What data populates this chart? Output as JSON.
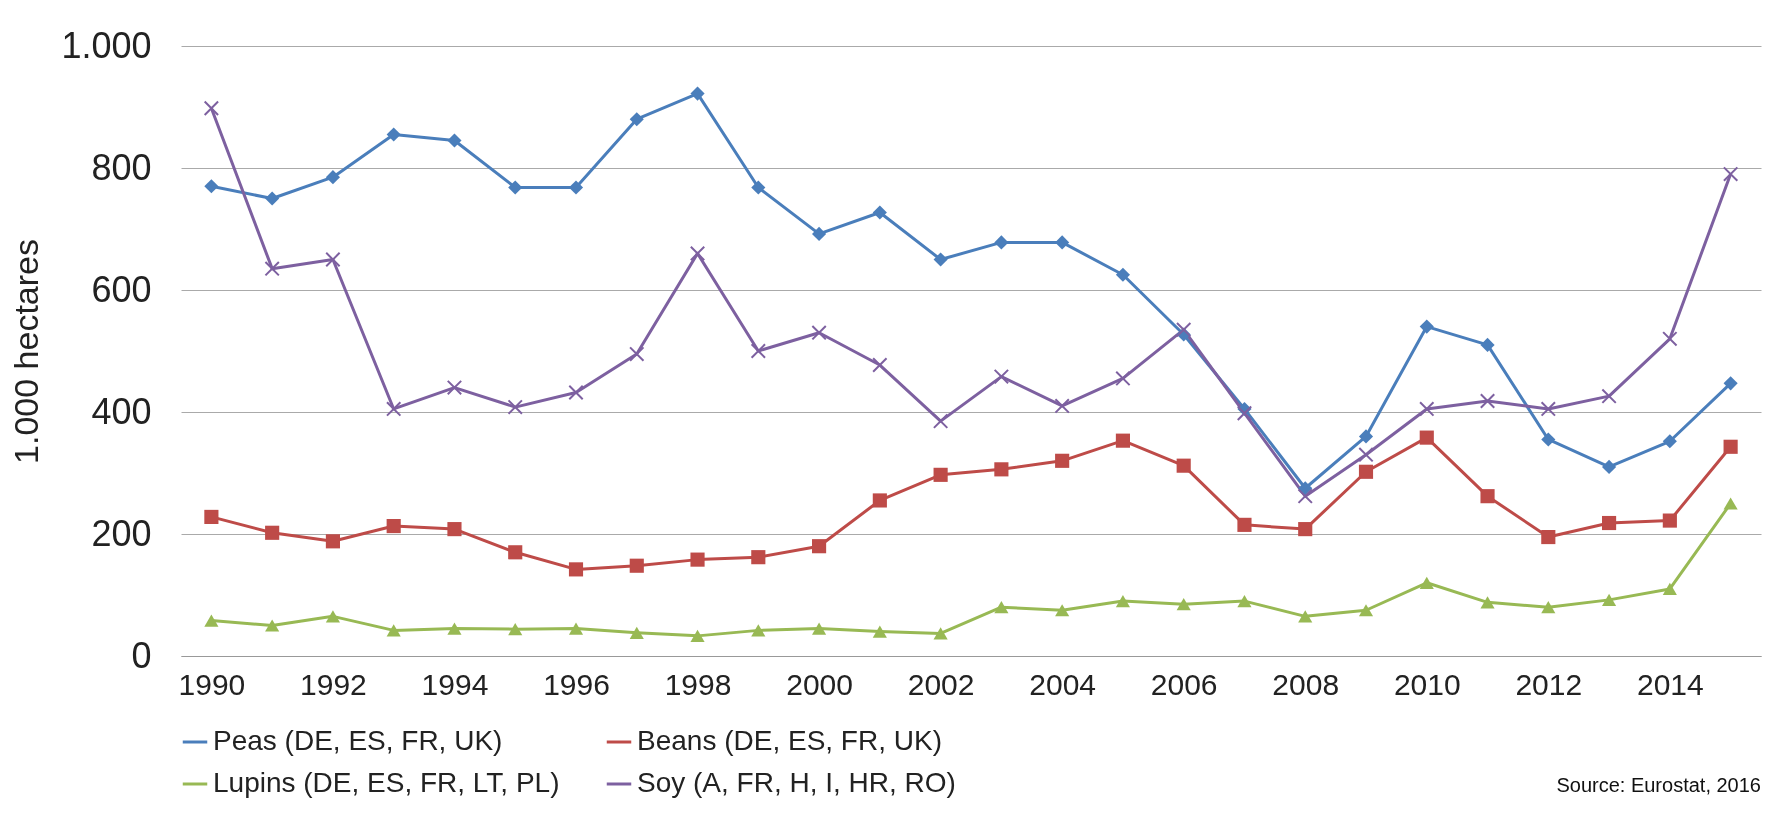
{
  "chart_data": {
    "type": "line",
    "ylabel": "1.000 hectares",
    "x": [
      1990,
      1991,
      1992,
      1993,
      1994,
      1995,
      1996,
      1997,
      1998,
      1999,
      2000,
      2001,
      2002,
      2003,
      2004,
      2005,
      2006,
      2007,
      2008,
      2009,
      2010,
      2011,
      2012,
      2013,
      2014,
      2015
    ],
    "xlim": [
      1989.5,
      2015.5
    ],
    "xticks": [
      1990,
      1992,
      1994,
      1996,
      1998,
      2000,
      2002,
      2004,
      2006,
      2008,
      2010,
      2012,
      2014
    ],
    "ylim": [
      0,
      1000
    ],
    "yticks": [
      0,
      200,
      400,
      600,
      800,
      {
        "value": 1000,
        "label": "1.000"
      }
    ],
    "grid": "y",
    "legend": "bottom",
    "annotations": [
      "Source: Eurostat, 2016"
    ],
    "series": [
      {
        "name": "Peas (DE, ES, FR, UK)",
        "color": "#4a7ebb",
        "marker": "diamond",
        "values": [
          770,
          750,
          785,
          855,
          845,
          768,
          768,
          880,
          922,
          768,
          692,
          727,
          650,
          678,
          678,
          625,
          527,
          405,
          275,
          360,
          540,
          510,
          355,
          310,
          352,
          447
        ]
      },
      {
        "name": "Beans (DE, ES, FR, UK)",
        "color": "#be4b48",
        "marker": "square",
        "values": [
          228,
          202,
          188,
          213,
          208,
          170,
          142,
          148,
          158,
          162,
          180,
          255,
          297,
          306,
          320,
          353,
          312,
          215,
          208,
          302,
          358,
          262,
          195,
          218,
          222,
          343
        ]
      },
      {
        "name": "Lupins (DE, ES, FR, LT, PL)",
        "color": "#98b954",
        "marker": "triangle",
        "values": [
          58,
          50,
          65,
          42,
          45,
          44,
          45,
          38,
          33,
          42,
          45,
          40,
          37,
          80,
          75,
          90,
          85,
          90,
          65,
          75,
          120,
          88,
          80,
          92,
          110,
          250
        ]
      },
      {
        "name": "Soy (A, FR, H, I,  HR, RO)",
        "color": "#7d60a0",
        "marker": "cross",
        "values": [
          898,
          635,
          650,
          405,
          440,
          408,
          432,
          495,
          660,
          500,
          530,
          477,
          385,
          458,
          410,
          455,
          535,
          398,
          262,
          330,
          405,
          418,
          405,
          426,
          520,
          790
        ]
      }
    ]
  }
}
